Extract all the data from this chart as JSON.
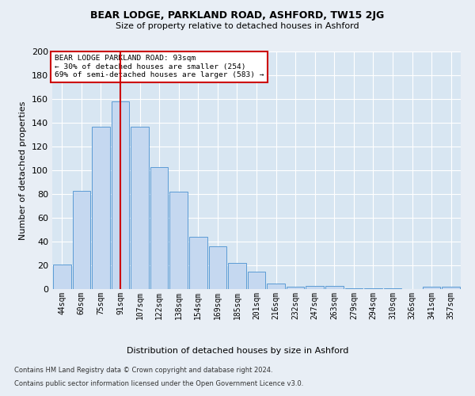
{
  "title1": "BEAR LODGE, PARKLAND ROAD, ASHFORD, TW15 2JG",
  "title2": "Size of property relative to detached houses in Ashford",
  "xlabel": "Distribution of detached houses by size in Ashford",
  "ylabel": "Number of detached properties",
  "categories": [
    "44sqm",
    "60sqm",
    "75sqm",
    "91sqm",
    "107sqm",
    "122sqm",
    "138sqm",
    "154sqm",
    "169sqm",
    "185sqm",
    "201sqm",
    "216sqm",
    "232sqm",
    "247sqm",
    "263sqm",
    "279sqm",
    "294sqm",
    "310sqm",
    "326sqm",
    "341sqm",
    "357sqm"
  ],
  "values": [
    21,
    83,
    137,
    158,
    137,
    103,
    82,
    44,
    36,
    22,
    15,
    5,
    2,
    3,
    3,
    1,
    1,
    1,
    0,
    2,
    2
  ],
  "bar_color": "#c5d8f0",
  "bar_edge_color": "#5b9bd5",
  "red_line_index": 3,
  "annotation_line1": "BEAR LODGE PARKLAND ROAD: 93sqm",
  "annotation_line2": "← 30% of detached houses are smaller (254)",
  "annotation_line3": "69% of semi-detached houses are larger (583) →",
  "annotation_box_color": "#ffffff",
  "annotation_box_edge": "#cc0000",
  "red_line_color": "#cc0000",
  "background_color": "#e8eef5",
  "plot_background": "#d8e6f2",
  "footer1": "Contains HM Land Registry data © Crown copyright and database right 2024.",
  "footer2": "Contains public sector information licensed under the Open Government Licence v3.0.",
  "ylim": [
    0,
    200
  ],
  "yticks": [
    0,
    20,
    40,
    60,
    80,
    100,
    120,
    140,
    160,
    180,
    200
  ]
}
